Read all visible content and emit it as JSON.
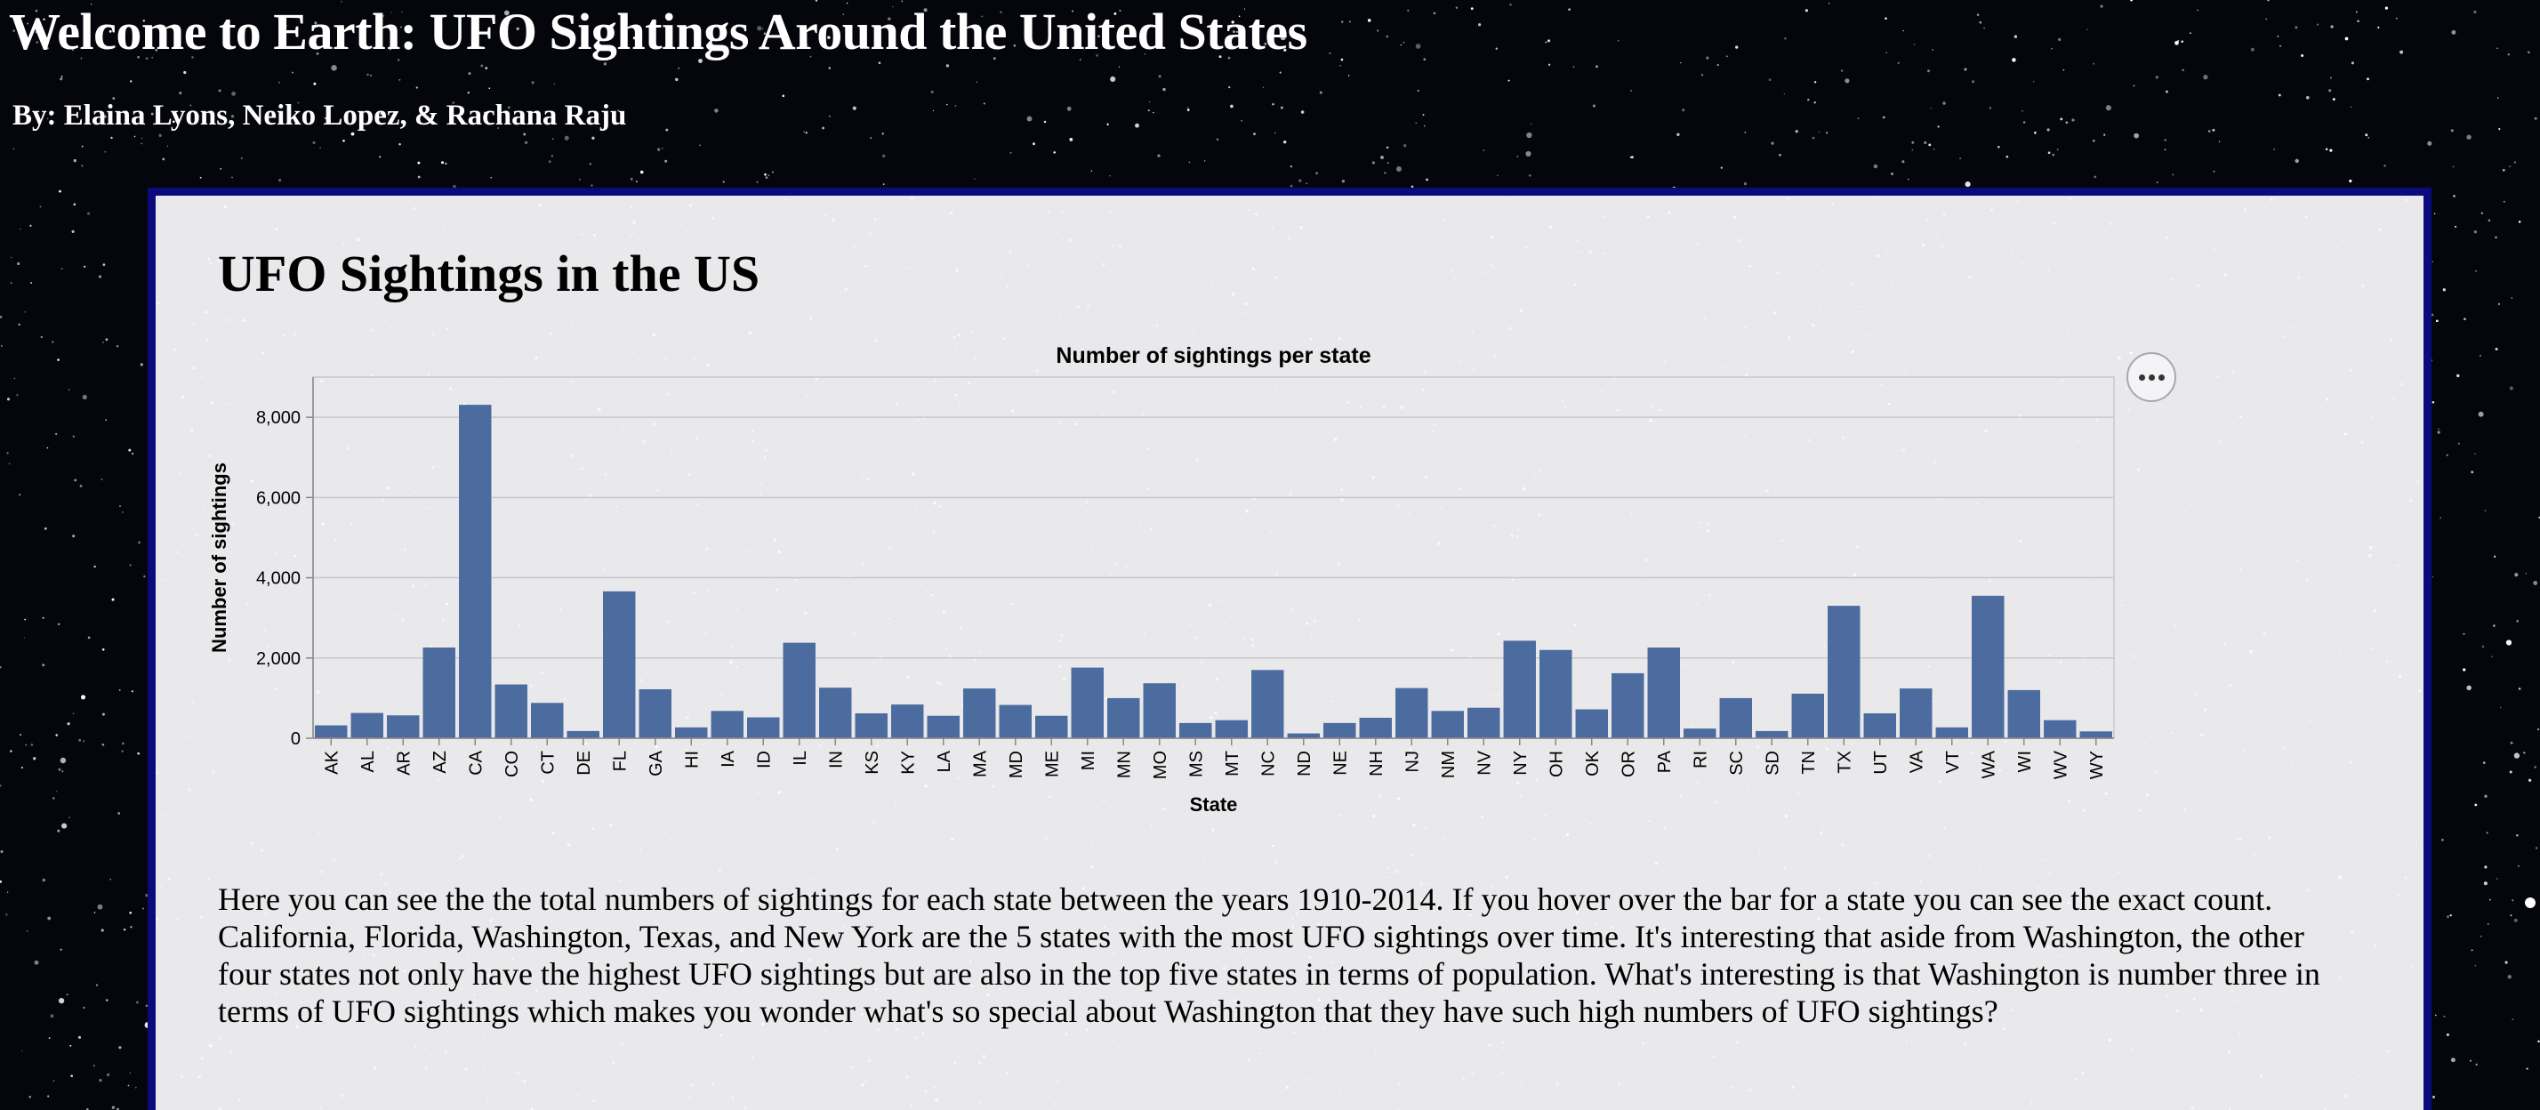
{
  "header": {
    "title": "Welcome to Earth: UFO Sightings Around the United States",
    "authors": "By: Elaina Lyons, Neiko Lopez, & Rachana Raju"
  },
  "section": {
    "title": "UFO Sightings in the US",
    "description": "Here you can see the the total numbers of sightings for each state between the years 1910-2014. If you hover over the bar for a state you can see the exact count. California, Florida, Washington, Texas, and New York are the 5 states with the most UFO sightings over time. It's interesting that aside from Washington, the other four states not only have the highest UFO sightings but are also in the top five states in terms of population. What's interesting is that Washington is number three in terms of UFO sightings which makes you wonder what's so special about Washington that they have such high numbers of UFO sightings?"
  },
  "actions_icon": "more-horizontal-icon",
  "colors": {
    "bar": "#4c6b9e",
    "panel_border": "#0a0a7c",
    "panel_background": "#e9e9ec",
    "page_background": "#05060c"
  },
  "chart_data": {
    "type": "bar",
    "title": "Number of sightings per state",
    "xlabel": "State",
    "ylabel": "Number of sightings",
    "ylim": [
      0,
      9000
    ],
    "yticks": [
      0,
      2000,
      4000,
      6000,
      8000
    ],
    "ytick_labels": [
      "0",
      "2,000",
      "4,000",
      "6,000",
      "8,000"
    ],
    "grid": true,
    "categories": [
      "AK",
      "AL",
      "AR",
      "AZ",
      "CA",
      "CO",
      "CT",
      "DE",
      "FL",
      "GA",
      "HI",
      "IA",
      "ID",
      "IL",
      "IN",
      "KS",
      "KY",
      "LA",
      "MA",
      "MD",
      "ME",
      "MI",
      "MN",
      "MO",
      "MS",
      "MT",
      "NC",
      "ND",
      "NE",
      "NH",
      "NJ",
      "NM",
      "NV",
      "NY",
      "OH",
      "OK",
      "OR",
      "PA",
      "RI",
      "SC",
      "SD",
      "TN",
      "TX",
      "UT",
      "VA",
      "VT",
      "WA",
      "WI",
      "WV",
      "WY"
    ],
    "values": [
      320,
      630,
      570,
      2260,
      8310,
      1340,
      880,
      180,
      3660,
      1220,
      270,
      680,
      520,
      2380,
      1260,
      620,
      840,
      560,
      1240,
      830,
      560,
      1760,
      1000,
      1370,
      380,
      450,
      1700,
      120,
      380,
      510,
      1250,
      680,
      760,
      2430,
      2200,
      720,
      1620,
      2260,
      240,
      1000,
      180,
      1110,
      3300,
      620,
      1240,
      270,
      3550,
      1200,
      450,
      170
    ]
  }
}
